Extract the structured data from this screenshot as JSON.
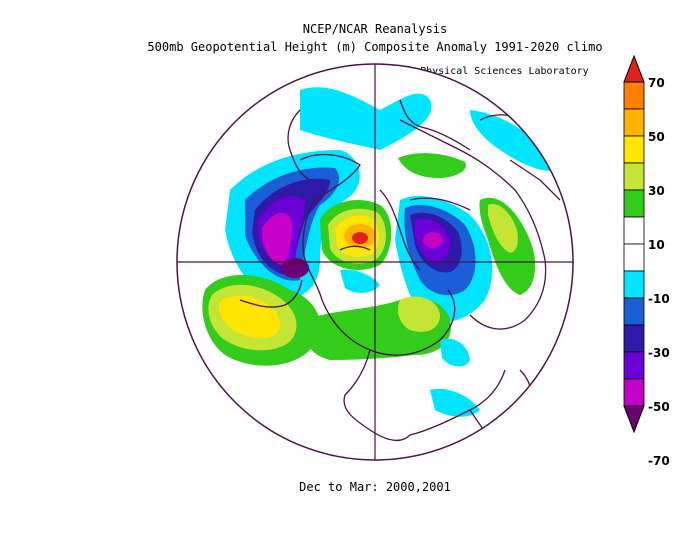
{
  "titles": {
    "line1": "NCEP/NCAR Reanalysis",
    "line2": "500mb Geopotential Height (m) Composite Anomaly 1991-2020 climo",
    "credit": "NOAA Physical Sciences Laboratory",
    "footer": "Dec to Mar: 2000,2001"
  },
  "colorbar": {
    "labels": [
      "70",
      "50",
      "30",
      "10",
      "-10",
      "-30",
      "-50",
      "-70"
    ],
    "colors": [
      "#e3211c",
      "#ff7f00",
      "#ffb300",
      "#ffe600",
      "#c4e536",
      "#33cc1a",
      "#ffffff",
      "#ffffff",
      "#00e5ff",
      "#1a5fd6",
      "#2f1aa8",
      "#6a00d6",
      "#c700c7",
      "#6b0072"
    ]
  },
  "map_legend_colors": {
    "pos10": "#33cc1a",
    "pos20": "#c4e536",
    "pos30": "#ffe600",
    "pos40": "#ffb300",
    "pos50": "#ff7f00",
    "pos70": "#e3211c",
    "neg10": "#00e5ff",
    "neg20": "#1a5fd6",
    "neg30": "#2f1aa8",
    "neg40": "#6a00d6",
    "neg50": "#c700c7",
    "neg70": "#6b0072",
    "coast": "#4b1246"
  }
}
